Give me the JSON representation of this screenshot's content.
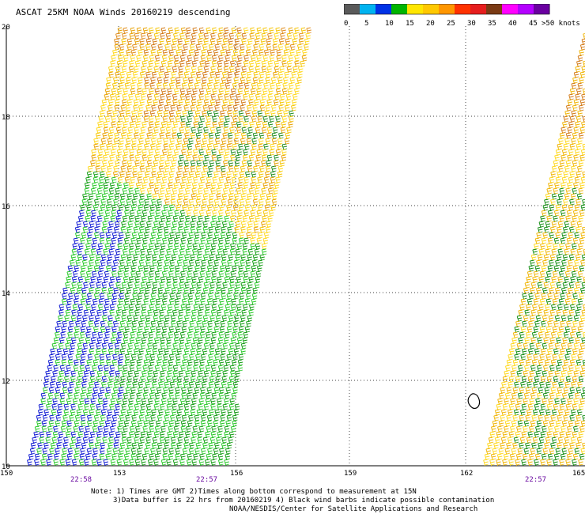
{
  "title": "ASCAT 25KM NOAA Winds 20160219 descending",
  "legend": {
    "colors": [
      "#5a5a5a",
      "#00b3f0",
      "#0032e6",
      "#00b400",
      "#ffe600",
      "#ffc800",
      "#ff9600",
      "#ff3200",
      "#e61e1e",
      "#7a3a14",
      "#ff00ff",
      "#b400ff",
      "#6a00a0"
    ],
    "labels": [
      "0",
      "5",
      "10",
      "15",
      "20",
      "25",
      "30",
      "35",
      "40",
      "45",
      ">50 knots"
    ]
  },
  "axes": {
    "lon_ticks": [
      "150",
      "153",
      "156",
      "159",
      "162",
      "165"
    ],
    "lat_ticks": [
      "20",
      "18",
      "16",
      "14",
      "12",
      "10"
    ]
  },
  "pass_times": [
    "22:58",
    "22:57",
    "22:57"
  ],
  "notes": [
    "Note: 1) Times are GMT 2)Times along bottom correspond to measurement at 15N",
    "3)Data buffer is 22 hrs from 20160219 4) Black wind barbs indicate possible contamination",
    "NOAA/NESDIS/Center for Satellite Applications and Research"
  ]
}
